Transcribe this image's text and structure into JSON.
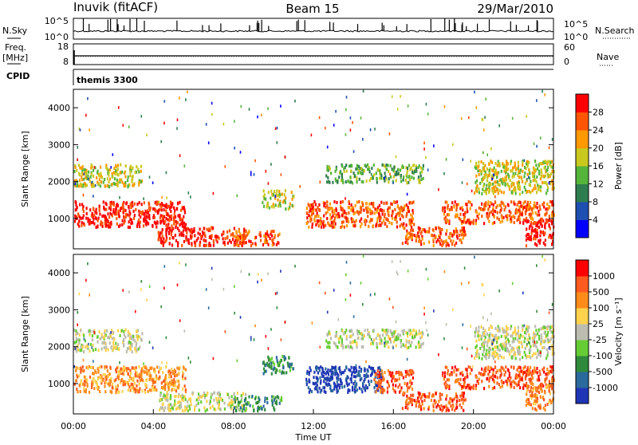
{
  "header": {
    "station": "Inuvik (fitACF)",
    "beam": "Beam 15",
    "date": "29/Mar/2010"
  },
  "strip_panels": {
    "nsky_label": "N.Sky",
    "nsky_ticks": [
      "10^5",
      "10^0"
    ],
    "nsearch_label": "N.Search",
    "nsearch_ticks": [
      "10^5",
      "10^0"
    ],
    "freq_label": "Freq.",
    "freq_unit": "[MHz]",
    "freq_ticks": [
      "18",
      "8"
    ],
    "nave_label": "Nave",
    "nave_ticks": [
      "60",
      "0"
    ],
    "cpid_label": "CPID",
    "cpid_value": "themis 3300"
  },
  "chart_data": [
    {
      "type": "heatmap",
      "name": "power",
      "ylabel": "Slant Range [km]",
      "yticks": [
        "4000",
        "3000",
        "2000",
        "1000"
      ],
      "ylim": [
        180,
        4500
      ],
      "xlim_hours": [
        0,
        24
      ],
      "colorbar_label": "Power [dB]",
      "colorbar_ticks": [
        "28",
        "24",
        "20",
        "16",
        "12",
        "8",
        "4"
      ],
      "colors": [
        "#0000ff",
        "#1f4fb0",
        "#2e7d4f",
        "#55b53a",
        "#c9c81f",
        "#ff9900",
        "#ff5500",
        "#ff0000"
      ],
      "bands": [
        {
          "t0": 0.0,
          "t1": 5.6,
          "r0": 800,
          "r1": 1500,
          "level": 7
        },
        {
          "t0": 0.0,
          "t1": 3.4,
          "r0": 1900,
          "r1": 2500,
          "level": 4
        },
        {
          "t0": 4.2,
          "t1": 8.6,
          "r0": 300,
          "r1": 800,
          "level": 7
        },
        {
          "t0": 8.0,
          "t1": 10.4,
          "r0": 300,
          "r1": 700,
          "level": 6
        },
        {
          "t0": 9.4,
          "t1": 11.0,
          "r0": 1300,
          "r1": 1800,
          "level": 4
        },
        {
          "t0": 11.6,
          "t1": 17.0,
          "r0": 800,
          "r1": 1500,
          "level": 6
        },
        {
          "t0": 12.6,
          "t1": 17.5,
          "r0": 2000,
          "r1": 2500,
          "level": 3
        },
        {
          "t0": 16.4,
          "t1": 19.6,
          "r0": 300,
          "r1": 800,
          "level": 6
        },
        {
          "t0": 18.4,
          "t1": 24.0,
          "r0": 900,
          "r1": 1500,
          "level": 6
        },
        {
          "t0": 20.0,
          "t1": 24.0,
          "r0": 1700,
          "r1": 2600,
          "level": 4
        },
        {
          "t0": 22.6,
          "t1": 24.0,
          "r0": 300,
          "r1": 1000,
          "level": 7
        }
      ]
    },
    {
      "type": "heatmap",
      "name": "velocity",
      "xlabel": "Time UT",
      "ylabel": "Slant Range [km]",
      "yticks": [
        "4000",
        "3000",
        "2000",
        "1000"
      ],
      "xticks": [
        "00:00",
        "04:00",
        "08:00",
        "12:00",
        "16:00",
        "20:00",
        "00:00"
      ],
      "ylim": [
        180,
        4500
      ],
      "xlim_hours": [
        0,
        24
      ],
      "colorbar_label": "Velocity [m s⁻¹]",
      "colorbar_ticks": [
        "1000",
        "500",
        "100",
        "25",
        "-25",
        "-100",
        "-500",
        "-1000"
      ],
      "colors": [
        "#1f35b5",
        "#2a6a9c",
        "#2f8a3c",
        "#66cc33",
        "#bcbcb0",
        "#ffd24d",
        "#ff8c1a",
        "#ff5a1f",
        "#ff0000"
      ],
      "bands": [
        {
          "t0": 0.0,
          "t1": 5.6,
          "r0": 800,
          "r1": 1500,
          "level": 6
        },
        {
          "t0": 0.0,
          "t1": 3.4,
          "r0": 1900,
          "r1": 2500,
          "level": 4
        },
        {
          "t0": 4.2,
          "t1": 8.6,
          "r0": 300,
          "r1": 800,
          "level": 4
        },
        {
          "t0": 8.0,
          "t1": 10.4,
          "r0": 300,
          "r1": 700,
          "level": 2
        },
        {
          "t0": 9.4,
          "t1": 11.0,
          "r0": 1300,
          "r1": 1800,
          "level": 2
        },
        {
          "t0": 11.6,
          "t1": 15.4,
          "r0": 800,
          "r1": 1500,
          "level": 0
        },
        {
          "t0": 15.0,
          "t1": 17.0,
          "r0": 800,
          "r1": 1400,
          "level": 7
        },
        {
          "t0": 12.6,
          "t1": 17.5,
          "r0": 2000,
          "r1": 2500,
          "level": 4
        },
        {
          "t0": 16.4,
          "t1": 19.6,
          "r0": 300,
          "r1": 800,
          "level": 7
        },
        {
          "t0": 18.4,
          "t1": 24.0,
          "r0": 900,
          "r1": 1500,
          "level": 7
        },
        {
          "t0": 20.0,
          "t1": 24.0,
          "r0": 1700,
          "r1": 2600,
          "level": 4
        },
        {
          "t0": 22.6,
          "t1": 24.0,
          "r0": 300,
          "r1": 1000,
          "level": 6
        }
      ]
    }
  ]
}
